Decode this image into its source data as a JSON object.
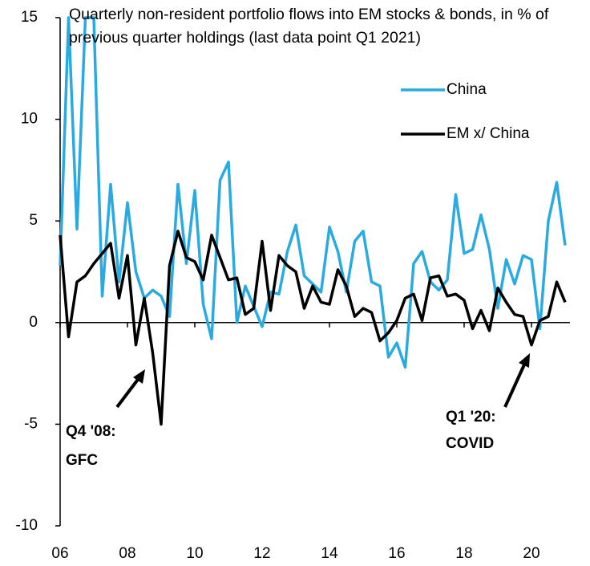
{
  "chart_data": {
    "type": "line",
    "title": "Quarterly non-resident portfolio flows into EM stocks & bonds, in % of previous quarter holdings (last data point Q1 2021)",
    "categories": [
      "06",
      null,
      null,
      null,
      null,
      null,
      null,
      null,
      "08",
      null,
      null,
      null,
      null,
      null,
      null,
      null,
      "10",
      null,
      null,
      null,
      null,
      null,
      null,
      null,
      "12",
      null,
      null,
      null,
      null,
      null,
      null,
      null,
      "14",
      null,
      null,
      null,
      null,
      null,
      null,
      null,
      "16",
      null,
      null,
      null,
      null,
      null,
      null,
      null,
      "18",
      null,
      null,
      null,
      null,
      null,
      null,
      null,
      "20",
      null,
      null,
      null,
      null
    ],
    "series": [
      {
        "name": "China",
        "color": "#29abe2",
        "values": [
          2.8,
          15,
          4.6,
          15,
          15,
          1.3,
          6.8,
          2.0,
          5.9,
          2.5,
          1.2,
          1.6,
          1.3,
          0.3,
          6.8,
          2.9,
          6.5,
          0.9,
          -0.8,
          7.0,
          7.9,
          0.0,
          1.8,
          0.8,
          -0.2,
          1.5,
          1.4,
          3.5,
          4.8,
          2.3,
          1.9,
          1.5,
          4.7,
          3.5,
          1.5,
          4.0,
          4.5,
          2.0,
          1.8,
          -1.7,
          -1.0,
          -2.2,
          2.9,
          3.5,
          2.0,
          1.6,
          2.1,
          6.3,
          3.4,
          3.6,
          5.3,
          3.6,
          0.7,
          3.1,
          1.9,
          3.3,
          3.1,
          -0.3,
          5.0,
          6.9,
          3.8
        ]
      },
      {
        "name": "EM x/ China",
        "color": "#000000",
        "values": [
          4.3,
          -0.7,
          2.0,
          2.3,
          2.9,
          3.4,
          3.9,
          1.2,
          3.3,
          -1.1,
          1.2,
          -1.5,
          -5.0,
          2.8,
          4.5,
          3.2,
          3.0,
          2.1,
          4.3,
          3.2,
          2.1,
          2.2,
          0.4,
          0.7,
          4.0,
          0.6,
          3.3,
          2.8,
          2.5,
          0.7,
          1.8,
          1.0,
          0.9,
          2.6,
          1.8,
          0.3,
          0.7,
          0.5,
          -0.9,
          -0.5,
          0.1,
          1.2,
          1.4,
          0.1,
          2.2,
          2.3,
          1.3,
          1.4,
          1.1,
          -0.3,
          0.6,
          -0.4,
          1.7,
          1.0,
          0.4,
          0.3,
          -1.1,
          0.1,
          0.3,
          2.0,
          1.0
        ]
      }
    ],
    "ylim": [
      -10,
      15
    ],
    "yticks": [
      -10,
      -5,
      0,
      5,
      10,
      15
    ],
    "annotations": [
      {
        "lines": [
          "Q4 '08:",
          "GFC"
        ]
      },
      {
        "lines": [
          "Q1 '20:",
          "COVID"
        ]
      }
    ]
  }
}
